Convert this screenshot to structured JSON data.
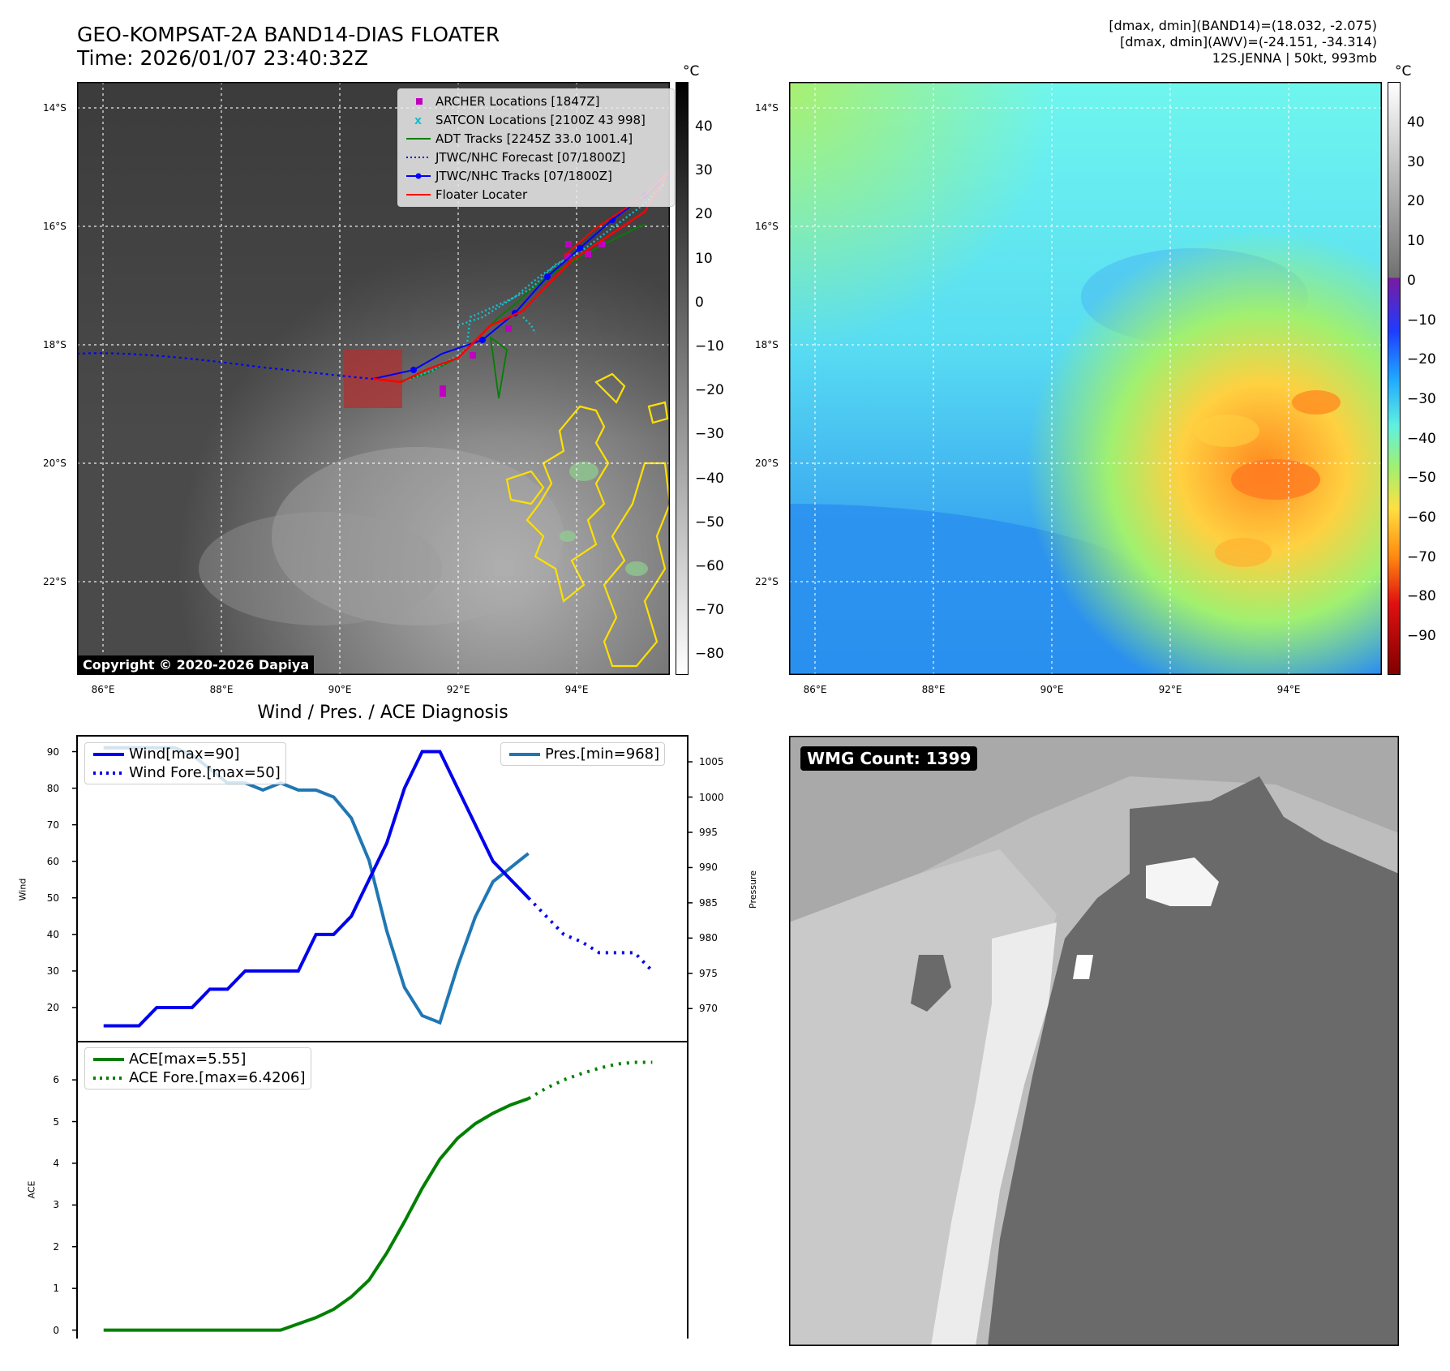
{
  "header": {
    "title_line1": "GEO-KOMPSAT-2A BAND14-DIAS FLOATER",
    "title_line2": "Time: 2026/01/07 23:40:32Z",
    "info_line1": "[dmax, dmin](BAND14)=(18.032, -2.075)",
    "info_line2": "[dmax, dmin](AWV)=(-24.151, -34.314)",
    "info_line3": "12S.JENNA | 50kt, 993mb"
  },
  "map_axes": {
    "lon_labels": [
      "86°E",
      "88°E",
      "90°E",
      "92°E",
      "94°E"
    ],
    "lat_labels": [
      "14°S",
      "16°S",
      "18°S",
      "20°S",
      "22°S"
    ]
  },
  "ir_panel": {
    "colorbar_unit": "°C",
    "colorbar_ticks": [
      "40",
      "30",
      "20",
      "10",
      "0",
      "−10",
      "−20",
      "−30",
      "−40",
      "−50",
      "−60",
      "−70",
      "−80"
    ],
    "copyright": "Copyright © 2020-2026 Dapiya",
    "legend": [
      {
        "label": "ARCHER Locations [1847Z]",
        "color": "#c000c0"
      },
      {
        "label": "SATCON Locations [2100Z 43 998]",
        "color": "#17becf"
      },
      {
        "label": "ADT Tracks [2245Z 33.0 1001.4]",
        "color": "#008000"
      },
      {
        "label": "JTWC/NHC Forecast [07/1800Z]",
        "color": "#0000ff"
      },
      {
        "label": "JTWC/NHC Tracks [07/1800Z]",
        "color": "#0000ff"
      },
      {
        "label": "Floater Locater",
        "color": "#ff0000"
      }
    ]
  },
  "wv_panel": {
    "colorbar_unit": "°C",
    "colorbar_ticks": [
      "40",
      "30",
      "20",
      "10",
      "0",
      "−10",
      "−20",
      "−30",
      "−40",
      "−50",
      "−60",
      "−70",
      "−80",
      "−90"
    ]
  },
  "diag_panel": {
    "title": "Wind / Pres. / ACE Diagnosis",
    "wind_ylabel": "Wind",
    "pres_ylabel": "Pressure",
    "ace_ylabel": "ACE",
    "wind_ticks": [
      "90",
      "80",
      "70",
      "60",
      "50",
      "40",
      "30",
      "20"
    ],
    "pres_ticks": [
      "1005",
      "1000",
      "995",
      "990",
      "985",
      "980",
      "975",
      "970"
    ],
    "ace_ticks": [
      "6",
      "5",
      "4",
      "3",
      "2",
      "1",
      "0"
    ],
    "legend_wind": "Wind[max=90]",
    "legend_wind_fore": "Wind Fore.[max=50]",
    "legend_pres": "Pres.[min=968]",
    "legend_ace": "ACE[max=5.55]",
    "legend_ace_fore": "ACE Fore.[max=6.4206]"
  },
  "wmg_panel": {
    "label": "WMG Count: 1399"
  },
  "colors": {
    "wind": "#0000ee",
    "pressure": "#1f77b4",
    "ace": "#008000"
  },
  "chart_data": [
    {
      "type": "line",
      "title": "Wind / Pres. / ACE Diagnosis",
      "series": [
        {
          "name": "Wind[max=90]",
          "axis": "Wind",
          "x": [
            0,
            1,
            2,
            3,
            4,
            5,
            6,
            7,
            8,
            9,
            10,
            11,
            12,
            13,
            14,
            15,
            16,
            17,
            18,
            19,
            20,
            21,
            22,
            23,
            24
          ],
          "values": [
            15,
            15,
            15,
            20,
            20,
            20,
            25,
            25,
            30,
            30,
            30,
            30,
            40,
            40,
            45,
            55,
            65,
            80,
            90,
            90,
            80,
            70,
            60,
            55,
            50
          ]
        },
        {
          "name": "Wind Fore.[max=50]",
          "axis": "Wind",
          "x": [
            24,
            25,
            26,
            27,
            28,
            29,
            30,
            31
          ],
          "values": [
            50,
            45,
            40,
            38,
            35,
            35,
            35,
            30
          ]
        },
        {
          "name": "Pres.[min=968]",
          "axis": "Pressure",
          "x": [
            0,
            1,
            2,
            3,
            4,
            5,
            6,
            7,
            8,
            9,
            10,
            11,
            12,
            13,
            14,
            15,
            16,
            17,
            18,
            19,
            20,
            21,
            22,
            23,
            24
          ],
          "values": [
            1007,
            1007,
            1007,
            1007,
            1007,
            1006,
            1004,
            1002,
            1002,
            1001,
            1002,
            1001,
            1001,
            1000,
            997,
            991,
            981,
            973,
            969,
            968,
            976,
            983,
            988,
            990,
            992
          ]
        }
      ],
      "ylim_wind": [
        12,
        93
      ],
      "ylim_pressure": [
        966,
        1008
      ]
    },
    {
      "type": "line",
      "series": [
        {
          "name": "ACE[max=5.55]",
          "x": [
            0,
            1,
            2,
            3,
            4,
            5,
            6,
            7,
            8,
            9,
            10,
            11,
            12,
            13,
            14,
            15,
            16,
            17,
            18,
            19,
            20,
            21,
            22,
            23,
            24
          ],
          "values": [
            0,
            0,
            0,
            0,
            0,
            0,
            0,
            0,
            0,
            0,
            0,
            0.15,
            0.3,
            0.5,
            0.8,
            1.2,
            1.85,
            2.6,
            3.4,
            4.1,
            4.6,
            4.95,
            5.2,
            5.4,
            5.55
          ]
        },
        {
          "name": "ACE Fore.[max=6.4206]",
          "x": [
            24,
            25,
            26,
            27,
            28,
            29,
            30,
            31
          ],
          "values": [
            5.55,
            5.8,
            6.0,
            6.15,
            6.28,
            6.38,
            6.42,
            6.42
          ]
        }
      ],
      "ylim": [
        -0.3,
        6.8
      ]
    }
  ]
}
